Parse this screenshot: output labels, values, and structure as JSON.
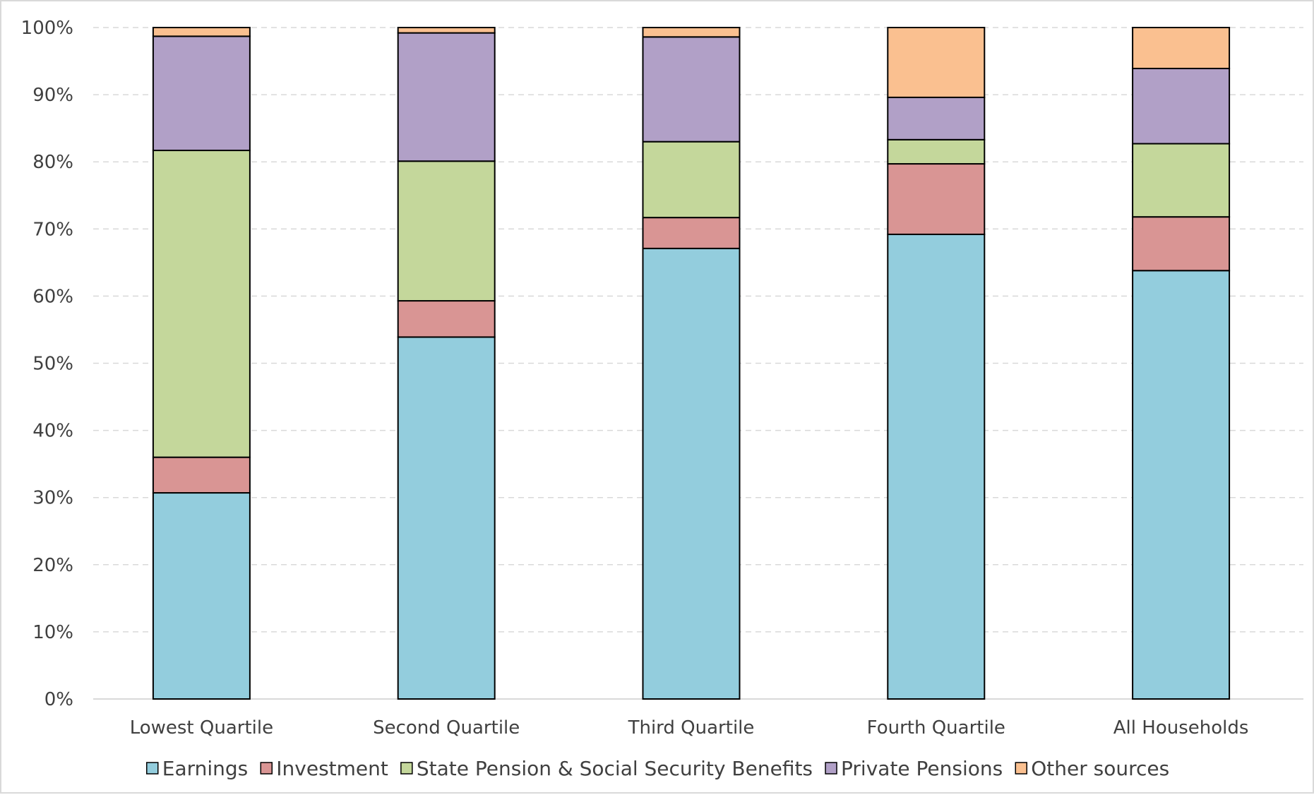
{
  "chart_data": {
    "type": "bar",
    "stacked": true,
    "categories": [
      "Lowest Quartile",
      "Second Quartile",
      "Third Quartile",
      "Fourth Quartile",
      "All Households"
    ],
    "series": [
      {
        "name": "Earnings",
        "color": "#93cddd",
        "values": [
          30.7,
          53.9,
          67.1,
          69.2,
          63.8
        ]
      },
      {
        "name": "Investment",
        "color": "#d99594",
        "values": [
          5.3,
          5.4,
          4.6,
          10.5,
          8.0
        ]
      },
      {
        "name": "State Pension & Social Security Benefits",
        "color": "#c4d79b",
        "values": [
          45.7,
          20.8,
          11.3,
          3.6,
          10.9
        ]
      },
      {
        "name": "Private Pensions",
        "color": "#b1a0c7",
        "values": [
          17.0,
          19.1,
          15.6,
          6.3,
          11.2
        ]
      },
      {
        "name": "Other sources",
        "color": "#fac090",
        "values": [
          1.3,
          0.8,
          1.4,
          10.4,
          6.1
        ]
      }
    ],
    "y_ticks": [
      "0%",
      "10%",
      "20%",
      "30%",
      "40%",
      "50%",
      "60%",
      "70%",
      "80%",
      "90%",
      "100%"
    ],
    "ylim": [
      0,
      100
    ],
    "grid": true,
    "legend_position": "bottom"
  }
}
